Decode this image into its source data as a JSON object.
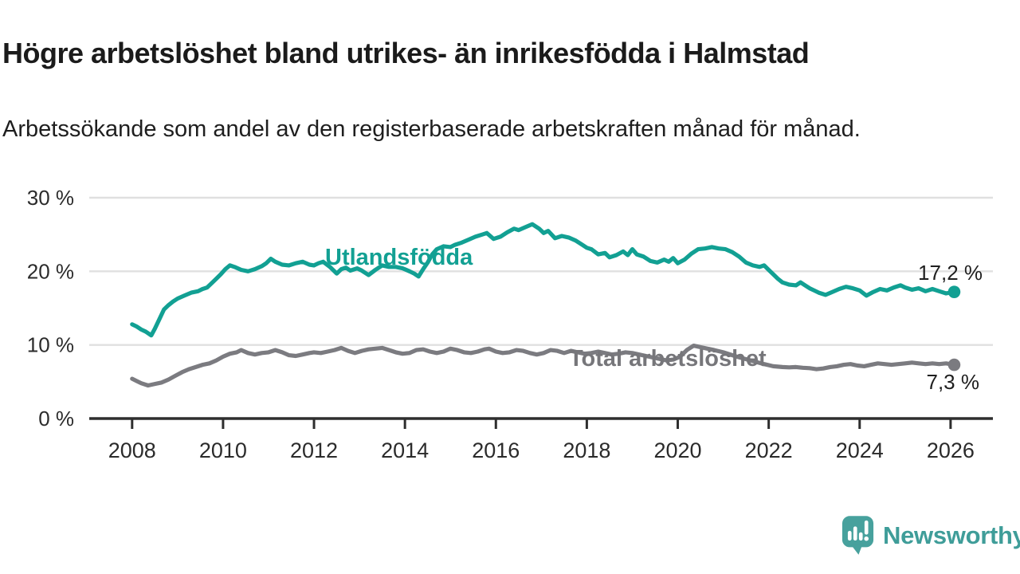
{
  "header": {
    "title": "Högre arbetslöshet bland utrikes- än inrikesfödda i Halmstad",
    "subtitle": "Arbetssökande som andel av den registerbaserade arbetskraften månad för månad."
  },
  "branding": {
    "logo_text": "Newsworthy",
    "logo_icon": "speech-bubble-bar-chart-icon",
    "brand_color": "#47a19d"
  },
  "chart_data": {
    "type": "line",
    "title": "Högre arbetslöshet bland utrikes- än inrikesfödda i Halmstad",
    "subtitle": "Arbetssökande som andel av den registerbaserade arbetskraften månad för månad.",
    "unit": "%",
    "grid": true,
    "x_axis": {
      "range": [
        2007.0,
        2026.9
      ],
      "ticks": [
        {
          "value": 2008,
          "label": "2008"
        },
        {
          "value": 2010,
          "label": "2010"
        },
        {
          "value": 2012,
          "label": "2012"
        },
        {
          "value": 2014,
          "label": "2014"
        },
        {
          "value": 2016,
          "label": "2016"
        },
        {
          "value": 2018,
          "label": "2018"
        },
        {
          "value": 2020,
          "label": "2020"
        },
        {
          "value": 2022,
          "label": "2022"
        },
        {
          "value": 2024,
          "label": "2024"
        },
        {
          "value": 2026,
          "label": "2026"
        }
      ]
    },
    "y_axis": {
      "range": [
        0,
        30
      ],
      "ticks": [
        {
          "value": 0,
          "label": "0 %"
        },
        {
          "value": 10,
          "label": "10 %"
        },
        {
          "value": 20,
          "label": "20 %"
        },
        {
          "value": 30,
          "label": "30 %"
        }
      ]
    },
    "series": [
      {
        "name": "Utlandsfödda",
        "color": "#12a093",
        "end_value": 17.2,
        "end_label": "17,2 %",
        "points": [
          [
            2008.0,
            12.8
          ],
          [
            2008.1,
            12.5
          ],
          [
            2008.2,
            12.1
          ],
          [
            2008.3,
            11.8
          ],
          [
            2008.42,
            11.3
          ],
          [
            2008.5,
            12.2
          ],
          [
            2008.6,
            13.5
          ],
          [
            2008.7,
            14.8
          ],
          [
            2008.8,
            15.4
          ],
          [
            2008.9,
            15.9
          ],
          [
            2009.0,
            16.3
          ],
          [
            2009.15,
            16.7
          ],
          [
            2009.3,
            17.1
          ],
          [
            2009.45,
            17.3
          ],
          [
            2009.55,
            17.6
          ],
          [
            2009.65,
            17.8
          ],
          [
            2009.75,
            18.4
          ],
          [
            2009.85,
            19.0
          ],
          [
            2009.95,
            19.6
          ],
          [
            2010.05,
            20.3
          ],
          [
            2010.15,
            20.8
          ],
          [
            2010.25,
            20.6
          ],
          [
            2010.4,
            20.2
          ],
          [
            2010.55,
            20.0
          ],
          [
            2010.7,
            20.3
          ],
          [
            2010.85,
            20.7
          ],
          [
            2010.95,
            21.1
          ],
          [
            2011.05,
            21.7
          ],
          [
            2011.15,
            21.3
          ],
          [
            2011.3,
            20.9
          ],
          [
            2011.45,
            20.8
          ],
          [
            2011.6,
            21.1
          ],
          [
            2011.75,
            21.3
          ],
          [
            2011.9,
            20.9
          ],
          [
            2012.0,
            20.8
          ],
          [
            2012.1,
            21.1
          ],
          [
            2012.2,
            21.3
          ],
          [
            2012.35,
            20.6
          ],
          [
            2012.5,
            19.7
          ],
          [
            2012.6,
            20.3
          ],
          [
            2012.7,
            20.5
          ],
          [
            2012.8,
            20.1
          ],
          [
            2012.95,
            20.4
          ],
          [
            2013.05,
            20.1
          ],
          [
            2013.2,
            19.5
          ],
          [
            2013.35,
            20.2
          ],
          [
            2013.5,
            20.8
          ],
          [
            2013.65,
            20.6
          ],
          [
            2013.8,
            20.6
          ],
          [
            2013.95,
            20.4
          ],
          [
            2014.1,
            20.0
          ],
          [
            2014.2,
            19.7
          ],
          [
            2014.3,
            19.3
          ],
          [
            2014.4,
            20.3
          ],
          [
            2014.5,
            21.2
          ],
          [
            2014.6,
            22.3
          ],
          [
            2014.7,
            23.0
          ],
          [
            2014.85,
            23.4
          ],
          [
            2015.0,
            23.3
          ],
          [
            2015.1,
            23.6
          ],
          [
            2015.25,
            23.9
          ],
          [
            2015.4,
            24.3
          ],
          [
            2015.55,
            24.7
          ],
          [
            2015.7,
            25.0
          ],
          [
            2015.8,
            25.2
          ],
          [
            2015.95,
            24.4
          ],
          [
            2016.1,
            24.7
          ],
          [
            2016.25,
            25.3
          ],
          [
            2016.4,
            25.8
          ],
          [
            2016.5,
            25.6
          ],
          [
            2016.65,
            26.0
          ],
          [
            2016.8,
            26.4
          ],
          [
            2016.95,
            25.8
          ],
          [
            2017.05,
            25.2
          ],
          [
            2017.15,
            25.5
          ],
          [
            2017.3,
            24.5
          ],
          [
            2017.45,
            24.8
          ],
          [
            2017.6,
            24.6
          ],
          [
            2017.75,
            24.2
          ],
          [
            2017.9,
            23.6
          ],
          [
            2018.0,
            23.2
          ],
          [
            2018.1,
            23.0
          ],
          [
            2018.25,
            22.3
          ],
          [
            2018.4,
            22.5
          ],
          [
            2018.5,
            21.9
          ],
          [
            2018.65,
            22.2
          ],
          [
            2018.8,
            22.7
          ],
          [
            2018.9,
            22.2
          ],
          [
            2019.0,
            23.0
          ],
          [
            2019.1,
            22.3
          ],
          [
            2019.25,
            22.0
          ],
          [
            2019.4,
            21.4
          ],
          [
            2019.55,
            21.2
          ],
          [
            2019.7,
            21.6
          ],
          [
            2019.8,
            21.3
          ],
          [
            2019.9,
            21.8
          ],
          [
            2020.0,
            21.1
          ],
          [
            2020.15,
            21.6
          ],
          [
            2020.3,
            22.4
          ],
          [
            2020.45,
            23.0
          ],
          [
            2020.6,
            23.1
          ],
          [
            2020.75,
            23.3
          ],
          [
            2020.9,
            23.1
          ],
          [
            2021.05,
            23.0
          ],
          [
            2021.2,
            22.6
          ],
          [
            2021.35,
            22.0
          ],
          [
            2021.5,
            21.2
          ],
          [
            2021.65,
            20.8
          ],
          [
            2021.8,
            20.6
          ],
          [
            2021.9,
            20.8
          ],
          [
            2022.0,
            20.2
          ],
          [
            2022.1,
            19.6
          ],
          [
            2022.2,
            19.0
          ],
          [
            2022.3,
            18.5
          ],
          [
            2022.45,
            18.2
          ],
          [
            2022.6,
            18.1
          ],
          [
            2022.7,
            18.5
          ],
          [
            2022.8,
            18.1
          ],
          [
            2022.9,
            17.7
          ],
          [
            2023.0,
            17.4
          ],
          [
            2023.1,
            17.1
          ],
          [
            2023.25,
            16.8
          ],
          [
            2023.4,
            17.2
          ],
          [
            2023.55,
            17.6
          ],
          [
            2023.7,
            17.9
          ],
          [
            2023.85,
            17.7
          ],
          [
            2024.0,
            17.4
          ],
          [
            2024.15,
            16.7
          ],
          [
            2024.3,
            17.2
          ],
          [
            2024.45,
            17.6
          ],
          [
            2024.6,
            17.4
          ],
          [
            2024.75,
            17.8
          ],
          [
            2024.9,
            18.1
          ],
          [
            2025.0,
            17.8
          ],
          [
            2025.15,
            17.5
          ],
          [
            2025.3,
            17.7
          ],
          [
            2025.45,
            17.3
          ],
          [
            2025.6,
            17.6
          ],
          [
            2025.75,
            17.3
          ],
          [
            2025.9,
            17.0
          ],
          [
            2026.08,
            17.2
          ]
        ]
      },
      {
        "name": "Total arbetslöshet",
        "color": "#7b7b80",
        "end_value": 7.3,
        "end_label": "7,3 %",
        "points": [
          [
            2008.0,
            5.4
          ],
          [
            2008.1,
            5.1
          ],
          [
            2008.2,
            4.8
          ],
          [
            2008.35,
            4.5
          ],
          [
            2008.5,
            4.7
          ],
          [
            2008.65,
            4.9
          ],
          [
            2008.8,
            5.3
          ],
          [
            2008.95,
            5.8
          ],
          [
            2009.1,
            6.3
          ],
          [
            2009.25,
            6.7
          ],
          [
            2009.4,
            7.0
          ],
          [
            2009.55,
            7.3
          ],
          [
            2009.7,
            7.5
          ],
          [
            2009.85,
            7.9
          ],
          [
            2010.0,
            8.4
          ],
          [
            2010.15,
            8.8
          ],
          [
            2010.3,
            9.0
          ],
          [
            2010.4,
            9.3
          ],
          [
            2010.55,
            8.9
          ],
          [
            2010.7,
            8.7
          ],
          [
            2010.85,
            8.9
          ],
          [
            2011.0,
            9.0
          ],
          [
            2011.15,
            9.3
          ],
          [
            2011.3,
            9.0
          ],
          [
            2011.45,
            8.6
          ],
          [
            2011.6,
            8.5
          ],
          [
            2011.75,
            8.7
          ],
          [
            2011.9,
            8.9
          ],
          [
            2012.0,
            9.0
          ],
          [
            2012.15,
            8.9
          ],
          [
            2012.3,
            9.1
          ],
          [
            2012.45,
            9.3
          ],
          [
            2012.6,
            9.6
          ],
          [
            2012.75,
            9.2
          ],
          [
            2012.9,
            8.9
          ],
          [
            2013.05,
            9.2
          ],
          [
            2013.2,
            9.4
          ],
          [
            2013.35,
            9.5
          ],
          [
            2013.5,
            9.6
          ],
          [
            2013.65,
            9.3
          ],
          [
            2013.8,
            9.0
          ],
          [
            2013.95,
            8.8
          ],
          [
            2014.1,
            8.9
          ],
          [
            2014.25,
            9.3
          ],
          [
            2014.4,
            9.4
          ],
          [
            2014.55,
            9.1
          ],
          [
            2014.7,
            8.9
          ],
          [
            2014.85,
            9.1
          ],
          [
            2015.0,
            9.5
          ],
          [
            2015.15,
            9.3
          ],
          [
            2015.3,
            9.0
          ],
          [
            2015.45,
            8.9
          ],
          [
            2015.6,
            9.1
          ],
          [
            2015.75,
            9.4
          ],
          [
            2015.85,
            9.5
          ],
          [
            2016.0,
            9.1
          ],
          [
            2016.15,
            8.9
          ],
          [
            2016.3,
            9.0
          ],
          [
            2016.45,
            9.3
          ],
          [
            2016.6,
            9.2
          ],
          [
            2016.75,
            8.9
          ],
          [
            2016.9,
            8.7
          ],
          [
            2017.05,
            8.9
          ],
          [
            2017.2,
            9.3
          ],
          [
            2017.35,
            9.2
          ],
          [
            2017.5,
            8.9
          ],
          [
            2017.65,
            9.2
          ],
          [
            2017.8,
            9.0
          ],
          [
            2017.95,
            8.8
          ],
          [
            2018.1,
            8.9
          ],
          [
            2018.25,
            9.1
          ],
          [
            2018.4,
            8.9
          ],
          [
            2018.55,
            8.7
          ],
          [
            2018.7,
            8.8
          ],
          [
            2018.85,
            9.0
          ],
          [
            2019.0,
            8.9
          ],
          [
            2019.15,
            8.7
          ],
          [
            2019.3,
            8.5
          ],
          [
            2019.45,
            8.3
          ],
          [
            2019.6,
            8.1
          ],
          [
            2019.75,
            7.9
          ],
          [
            2019.9,
            8.0
          ],
          [
            2020.05,
            8.4
          ],
          [
            2020.2,
            9.3
          ],
          [
            2020.35,
            9.9
          ],
          [
            2020.5,
            9.7
          ],
          [
            2020.65,
            9.5
          ],
          [
            2020.8,
            9.3
          ],
          [
            2021.0,
            9.0
          ],
          [
            2021.3,
            8.4
          ],
          [
            2021.6,
            7.9
          ],
          [
            2021.9,
            7.4
          ],
          [
            2022.1,
            7.1
          ],
          [
            2022.3,
            7.0
          ],
          [
            2022.45,
            6.95
          ],
          [
            2022.6,
            7.0
          ],
          [
            2022.75,
            6.9
          ],
          [
            2022.9,
            6.85
          ],
          [
            2023.05,
            6.7
          ],
          [
            2023.2,
            6.8
          ],
          [
            2023.35,
            7.0
          ],
          [
            2023.5,
            7.1
          ],
          [
            2023.65,
            7.3
          ],
          [
            2023.8,
            7.4
          ],
          [
            2023.95,
            7.2
          ],
          [
            2024.1,
            7.1
          ],
          [
            2024.25,
            7.3
          ],
          [
            2024.4,
            7.5
          ],
          [
            2024.55,
            7.4
          ],
          [
            2024.7,
            7.3
          ],
          [
            2024.85,
            7.4
          ],
          [
            2025.0,
            7.5
          ],
          [
            2025.15,
            7.6
          ],
          [
            2025.3,
            7.5
          ],
          [
            2025.45,
            7.4
          ],
          [
            2025.6,
            7.5
          ],
          [
            2025.75,
            7.4
          ],
          [
            2025.9,
            7.5
          ],
          [
            2026.08,
            7.3
          ]
        ]
      }
    ],
    "colors": {
      "grid": "#e0e0e0",
      "axis": "#2e2e2e",
      "tick_text": "#2b2b2b"
    },
    "legend_position": "inline-labels"
  }
}
